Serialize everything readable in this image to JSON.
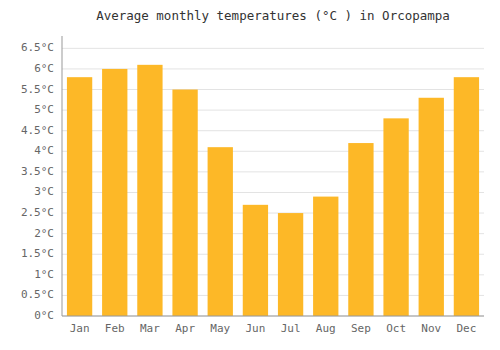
{
  "chart_data": {
    "type": "bar",
    "title": "Average monthly temperatures (°C ) in Orcopampa",
    "categories": [
      "Jan",
      "Feb",
      "Mar",
      "Apr",
      "May",
      "Jun",
      "Jul",
      "Aug",
      "Sep",
      "Oct",
      "Nov",
      "Dec"
    ],
    "values": [
      5.8,
      6.0,
      6.1,
      5.5,
      4.1,
      2.7,
      2.5,
      2.9,
      4.2,
      4.8,
      5.3,
      5.8
    ],
    "color": "#FDB827",
    "ylim": [
      0,
      6.8
    ],
    "yticks": [
      {
        "value": 0,
        "label": "0°C"
      },
      {
        "value": 0.5,
        "label": "0.5°C"
      },
      {
        "value": 1.0,
        "label": "1°C"
      },
      {
        "value": 1.5,
        "label": "1.5°C"
      },
      {
        "value": 2.0,
        "label": "2°C"
      },
      {
        "value": 2.5,
        "label": "2.5°C"
      },
      {
        "value": 3.0,
        "label": "3°C"
      },
      {
        "value": 3.5,
        "label": "3.5°C"
      },
      {
        "value": 4.0,
        "label": "4°C"
      },
      {
        "value": 4.5,
        "label": "4.5°C"
      },
      {
        "value": 5.0,
        "label": "5°C"
      },
      {
        "value": 5.5,
        "label": "5.5°C"
      },
      {
        "value": 6.0,
        "label": "6°C"
      },
      {
        "value": 6.5,
        "label": "6.5°C"
      }
    ],
    "grid": true
  }
}
